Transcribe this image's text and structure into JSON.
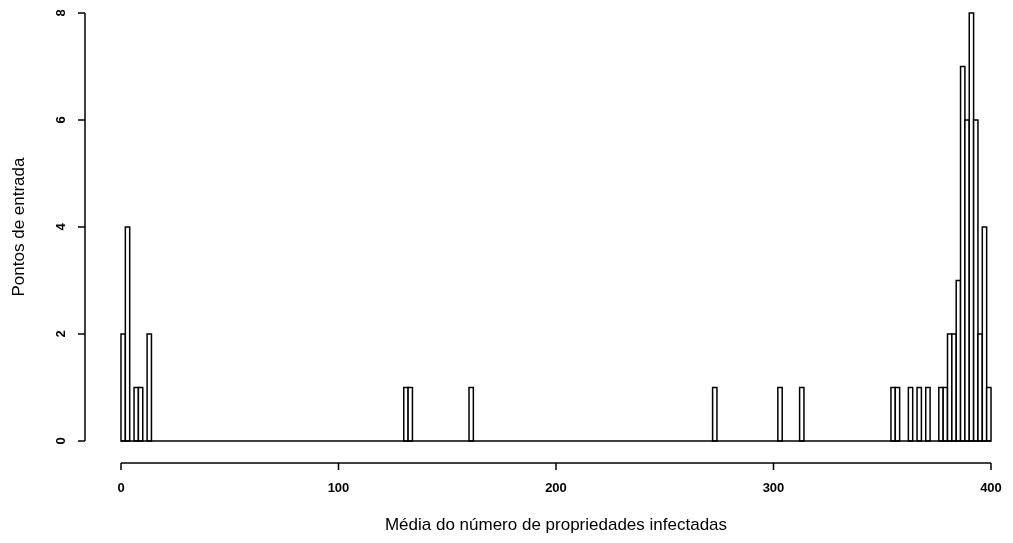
{
  "chart_data": {
    "type": "histogram",
    "xlabel": "Média do número de propriedades infectadas",
    "ylabel": "Pontos de entrada",
    "color": "#ffffff",
    "bins": [
      0,
      2,
      4,
      6,
      8,
      10,
      12,
      14,
      16,
      18,
      20,
      22,
      24,
      26,
      28,
      30,
      32,
      34,
      36,
      38,
      40,
      42,
      44,
      46,
      48,
      50,
      52,
      54,
      56,
      58,
      60,
      62,
      64,
      66,
      68,
      70,
      72,
      74,
      76,
      78,
      80,
      82,
      84,
      86,
      88,
      90,
      92,
      94,
      96,
      98,
      100,
      102,
      104,
      106,
      108,
      110,
      112,
      114,
      116,
      118,
      120,
      122,
      124,
      126,
      128,
      130,
      132,
      134,
      136,
      138,
      140,
      142,
      144,
      146,
      148,
      150,
      152,
      154,
      156,
      158,
      160,
      162,
      164,
      166,
      168,
      170,
      172,
      174,
      176,
      178,
      180,
      182,
      184,
      186,
      188,
      190,
      192,
      194,
      196,
      198,
      200,
      202,
      204,
      206,
      208,
      210,
      212,
      214,
      216,
      218,
      220,
      222,
      224,
      226,
      228,
      230,
      232,
      234,
      236,
      238,
      240,
      242,
      244,
      246,
      248,
      250,
      252,
      254,
      256,
      258,
      260,
      262,
      264,
      266,
      268,
      270,
      272,
      274,
      276,
      278,
      280,
      282,
      284,
      286,
      288,
      290,
      292,
      294,
      296,
      298,
      300,
      302,
      304,
      306,
      308,
      310,
      312,
      314,
      316,
      318,
      320,
      322,
      324,
      326,
      328,
      330,
      332,
      334,
      336,
      338,
      340,
      342,
      344,
      346,
      348,
      350,
      352,
      354,
      356,
      358,
      360,
      362,
      364,
      366,
      368,
      370,
      372,
      374,
      376,
      378,
      380,
      382,
      384,
      386,
      388,
      390,
      392,
      394,
      396,
      398,
      400
    ],
    "values": [
      2,
      4,
      0,
      1,
      1,
      0,
      2,
      0,
      0,
      0,
      0,
      0,
      0,
      0,
      0,
      0,
      0,
      0,
      0,
      0,
      0,
      0,
      0,
      0,
      0,
      0,
      0,
      0,
      0,
      0,
      0,
      0,
      0,
      0,
      0,
      0,
      0,
      0,
      0,
      0,
      0,
      0,
      0,
      0,
      0,
      0,
      0,
      0,
      0,
      0,
      0,
      0,
      0,
      0,
      0,
      0,
      0,
      0,
      0,
      0,
      0,
      0,
      0,
      0,
      0,
      1,
      1,
      0,
      0,
      0,
      0,
      0,
      0,
      0,
      0,
      0,
      0,
      0,
      0,
      0,
      1,
      0,
      0,
      0,
      0,
      0,
      0,
      0,
      0,
      0,
      0,
      0,
      0,
      0,
      0,
      0,
      0,
      0,
      0,
      0,
      0,
      0,
      0,
      0,
      0,
      0,
      0,
      0,
      0,
      0,
      0,
      0,
      0,
      0,
      0,
      0,
      0,
      0,
      0,
      0,
      0,
      0,
      0,
      0,
      0,
      0,
      0,
      0,
      0,
      0,
      0,
      0,
      0,
      0,
      0,
      0,
      1,
      0,
      0,
      0,
      0,
      0,
      0,
      0,
      0,
      0,
      0,
      0,
      0,
      0,
      0,
      1,
      0,
      0,
      0,
      0,
      1,
      0,
      0,
      0,
      0,
      0,
      0,
      0,
      0,
      0,
      0,
      0,
      0,
      0,
      0,
      0,
      0,
      0,
      0,
      0,
      0,
      1,
      1,
      0,
      0,
      1,
      0,
      1,
      0,
      1,
      0,
      0,
      1,
      1,
      2,
      2,
      3,
      7,
      6,
      8,
      6,
      2,
      4,
      1
    ],
    "xlim": [
      0,
      400
    ],
    "xticks": [
      0,
      100,
      200,
      300,
      400
    ],
    "ylim": [
      0,
      8
    ],
    "yticks": [
      0,
      2,
      4,
      6,
      8
    ]
  }
}
